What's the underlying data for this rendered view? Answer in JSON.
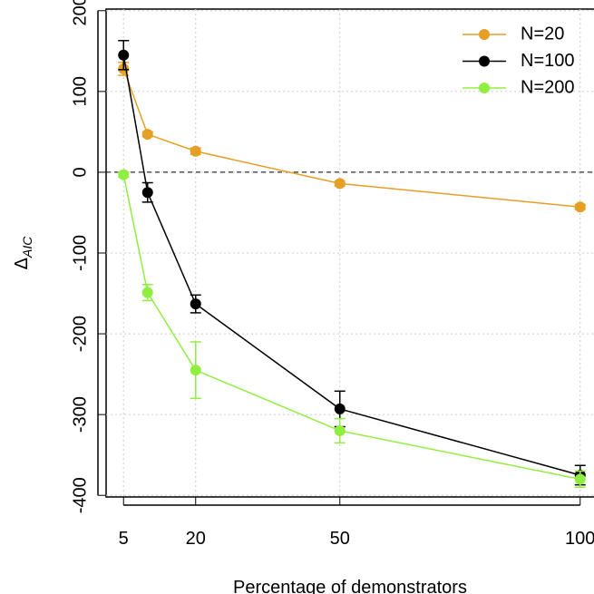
{
  "chart_data": {
    "type": "line",
    "xlabel": "Percentage of demonstrators",
    "ylabel": "Δ",
    "ylabel_subscript": "AIC",
    "x": [
      5,
      10,
      20,
      50,
      100
    ],
    "xlim": [
      1.37,
      104.2
    ],
    "xticks": [
      5,
      20,
      50,
      100
    ],
    "ylim": [
      -402,
      202
    ],
    "yticks": [
      -400,
      -300,
      -200,
      -100,
      0,
      100,
      200
    ],
    "grid": true,
    "hline": 0,
    "legend": "top-right",
    "series": [
      {
        "name": "N=20",
        "color": "#e69f25",
        "values": [
          128,
          47,
          26,
          -14,
          -43
        ],
        "errors": [
          8,
          3,
          4,
          3,
          3
        ]
      },
      {
        "name": "N=100",
        "color": "#000000",
        "values": [
          145,
          -25,
          -163,
          -293,
          -375
        ],
        "errors": [
          18,
          12,
          11,
          22,
          12
        ]
      },
      {
        "name": "N=200",
        "color": "#90ee40",
        "values": [
          -3,
          -149,
          -245,
          -320,
          -380
        ],
        "errors": [
          3,
          10,
          35,
          15,
          10
        ]
      }
    ]
  }
}
